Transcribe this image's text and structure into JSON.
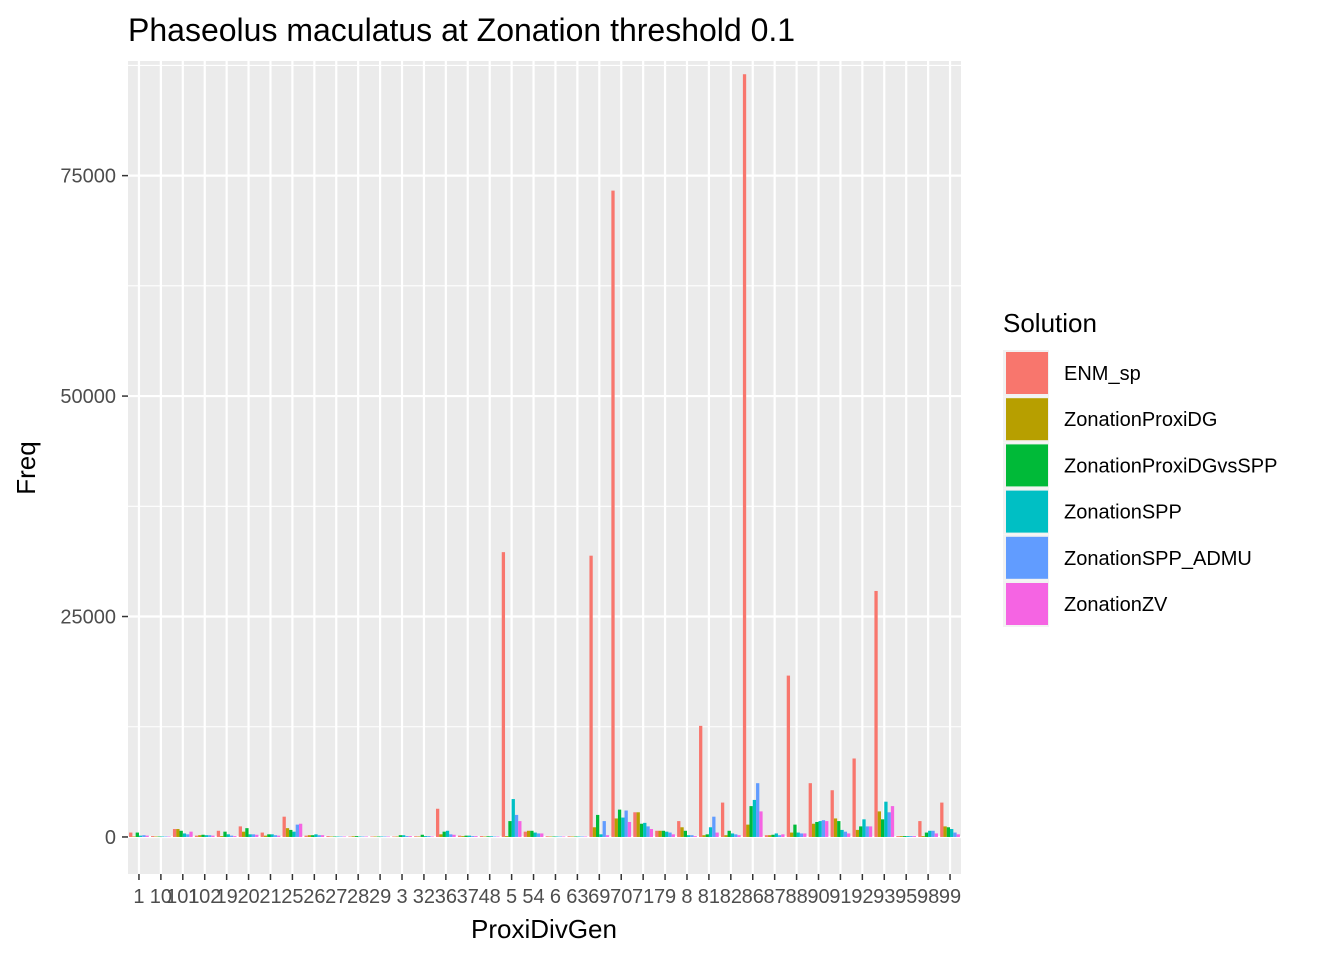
{
  "chart_data": {
    "type": "bar",
    "title": "Phaseolus maculatus at Zonation threshold 0.1",
    "xlabel": "ProxiDivGen",
    "ylabel": "Freq",
    "ylim": [
      -4200,
      88000
    ],
    "yticks": [
      0,
      25000,
      50000,
      75000
    ],
    "yticklabels": [
      "0",
      "25000",
      "50000",
      "75000"
    ],
    "grid": true,
    "legend": {
      "title": "Solution",
      "placement": "right"
    },
    "categories": [
      "1",
      "10",
      "101",
      "102",
      "19",
      "20",
      "21",
      "25",
      "26",
      "27",
      "28",
      "29",
      "3",
      "32",
      "36",
      "37",
      "48",
      "5",
      "54",
      "6",
      "63",
      "69",
      "70",
      "71",
      "79",
      "8",
      "81",
      "82",
      "86",
      "87",
      "88",
      "90",
      "91",
      "92",
      "93",
      "95",
      "98",
      "99"
    ],
    "series": [
      {
        "name": "ENM_sp",
        "color": "#F8766D",
        "values": [
          500,
          100,
          900,
          150,
          700,
          1200,
          500,
          2300,
          150,
          100,
          50,
          50,
          50,
          80,
          3200,
          150,
          100,
          32300,
          600,
          80,
          80,
          31900,
          73300,
          2800,
          700,
          1800,
          12600,
          3900,
          86500,
          200,
          18300,
          6100,
          5300,
          8900,
          27900,
          100,
          1800,
          3900
        ]
      },
      {
        "name": "ZonationProxiDG",
        "color": "#B79F00",
        "values": [
          60,
          50,
          900,
          200,
          100,
          600,
          150,
          1000,
          200,
          50,
          80,
          50,
          50,
          60,
          300,
          100,
          50,
          100,
          700,
          50,
          50,
          1100,
          2100,
          2800,
          700,
          1100,
          200,
          200,
          1400,
          200,
          500,
          1500,
          2100,
          800,
          2900,
          100,
          100,
          1200
        ]
      },
      {
        "name": "ZonationProxiDGvsSPP",
        "color": "#00BA38",
        "values": [
          500,
          50,
          700,
          250,
          600,
          1000,
          300,
          800,
          200,
          50,
          100,
          50,
          200,
          250,
          600,
          150,
          80,
          1800,
          700,
          50,
          50,
          2500,
          3100,
          1500,
          700,
          700,
          300,
          700,
          3500,
          250,
          1400,
          1700,
          1800,
          1200,
          2000,
          100,
          500,
          1100
        ]
      },
      {
        "name": "ZonationSPP",
        "color": "#00BFC4",
        "values": [
          150,
          50,
          400,
          200,
          300,
          300,
          300,
          600,
          300,
          50,
          50,
          50,
          200,
          100,
          700,
          150,
          80,
          4300,
          500,
          50,
          50,
          300,
          2200,
          1600,
          600,
          200,
          1100,
          400,
          4200,
          400,
          500,
          1800,
          800,
          2000,
          4000,
          100,
          700,
          900
        ]
      },
      {
        "name": "ZonationSPP_ADMU",
        "color": "#619CFF",
        "values": [
          200,
          50,
          300,
          200,
          150,
          300,
          200,
          1400,
          200,
          50,
          50,
          50,
          100,
          100,
          300,
          100,
          50,
          2500,
          400,
          50,
          50,
          1800,
          3000,
          1200,
          500,
          200,
          2300,
          300,
          6100,
          200,
          400,
          1900,
          600,
          1200,
          2800,
          100,
          700,
          500
        ]
      },
      {
        "name": "ZonationZV",
        "color": "#F564E3",
        "values": [
          150,
          50,
          600,
          150,
          100,
          250,
          150,
          1500,
          200,
          50,
          50,
          50,
          100,
          50,
          250,
          100,
          50,
          1800,
          400,
          50,
          50,
          200,
          1700,
          900,
          300,
          100,
          500,
          200,
          2900,
          300,
          400,
          1800,
          400,
          1200,
          3500,
          100,
          400,
          300
        ]
      }
    ]
  }
}
